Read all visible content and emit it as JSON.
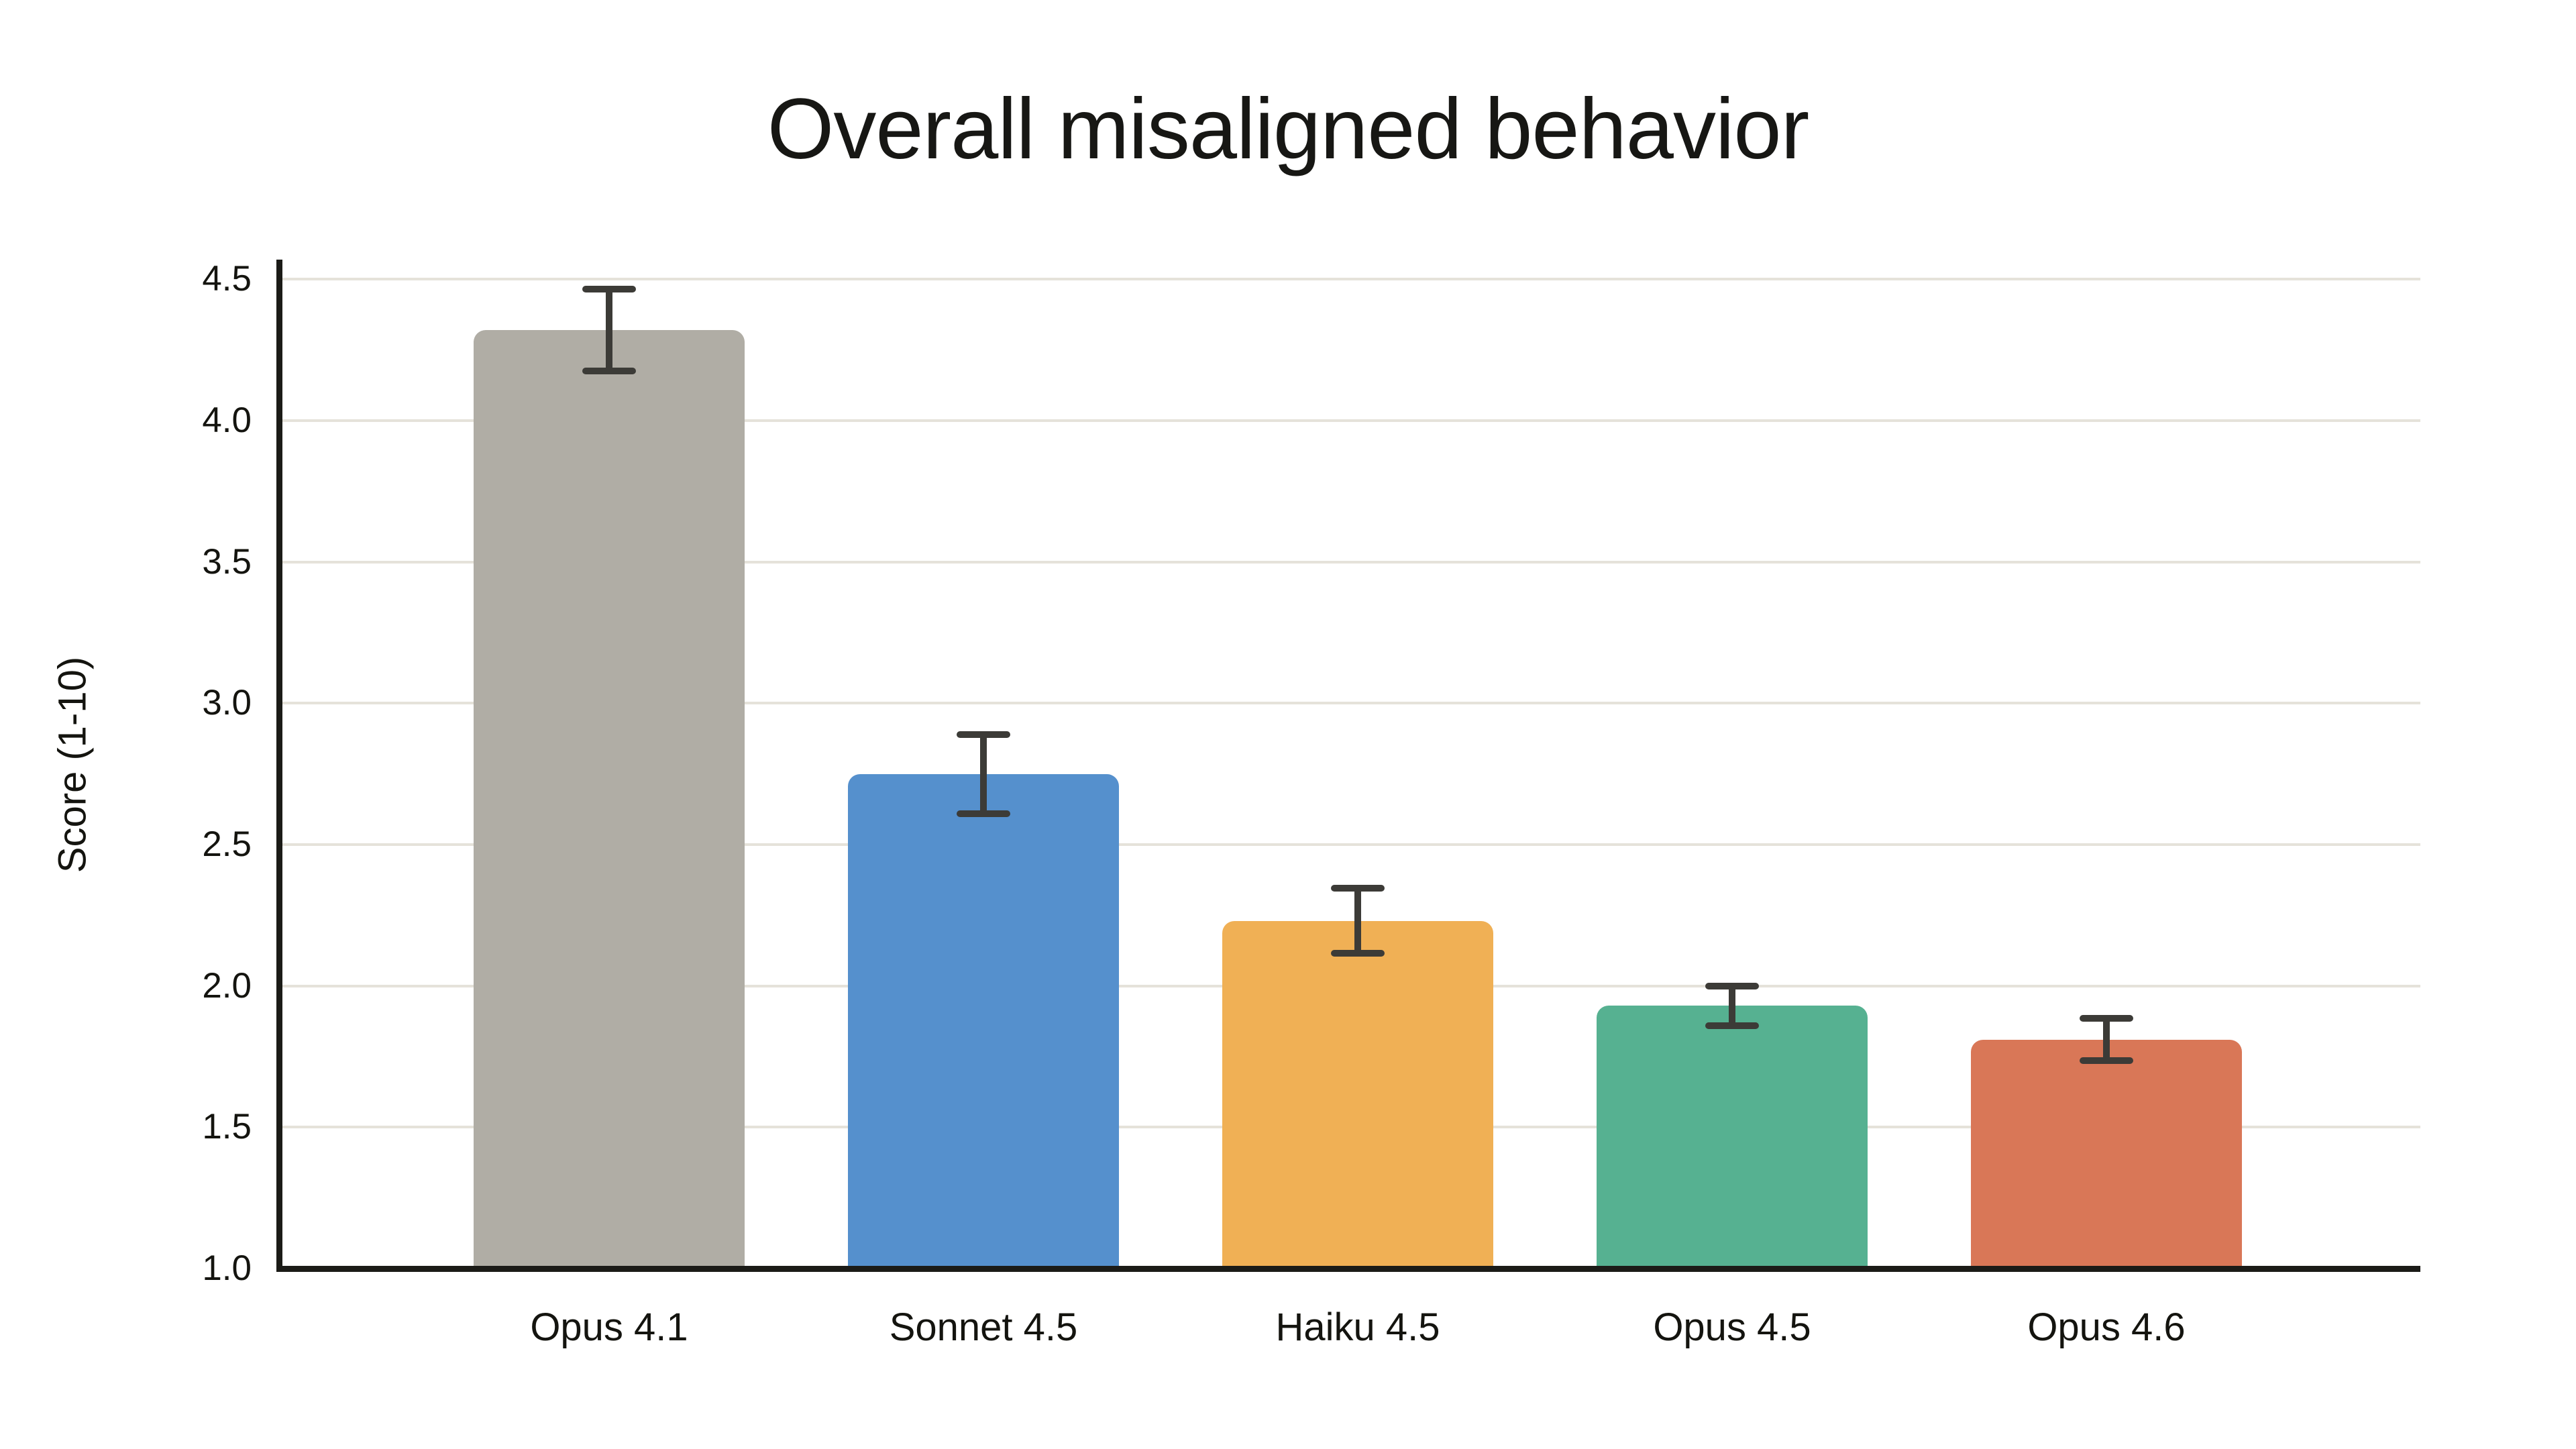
{
  "chart_data": {
    "type": "bar",
    "title": "Overall misaligned behavior",
    "xlabel": "",
    "ylabel": "Score (1-10)",
    "categories": [
      "Opus 4.1",
      "Sonnet 4.5",
      "Haiku 4.5",
      "Opus 4.5",
      "Opus 4.6"
    ],
    "values": [
      4.32,
      2.75,
      2.23,
      1.93,
      1.81
    ],
    "errors": [
      0.145,
      0.14,
      0.115,
      0.07,
      0.075
    ],
    "bar_colors": [
      "#b0ada5",
      "#5590cd",
      "#f0b055",
      "#56b191",
      "#d97757"
    ],
    "error_bar_color": "#3c3b37",
    "gridline_color": "#e5e2da",
    "axis_color": "#1b1b17",
    "text_color": "#14140f",
    "background_color": "#ffffff",
    "ylim": [
      1.0,
      4.57
    ],
    "yticks": [
      1.0,
      1.5,
      2.0,
      2.5,
      3.0,
      3.5,
      4.0,
      4.5
    ],
    "ytick_labels": [
      "1.0",
      "1.5",
      "2.0",
      "2.5",
      "3.0",
      "3.5",
      "4.0",
      "4.5"
    ],
    "grid": true,
    "legend": false,
    "baseline": 1.0
  }
}
